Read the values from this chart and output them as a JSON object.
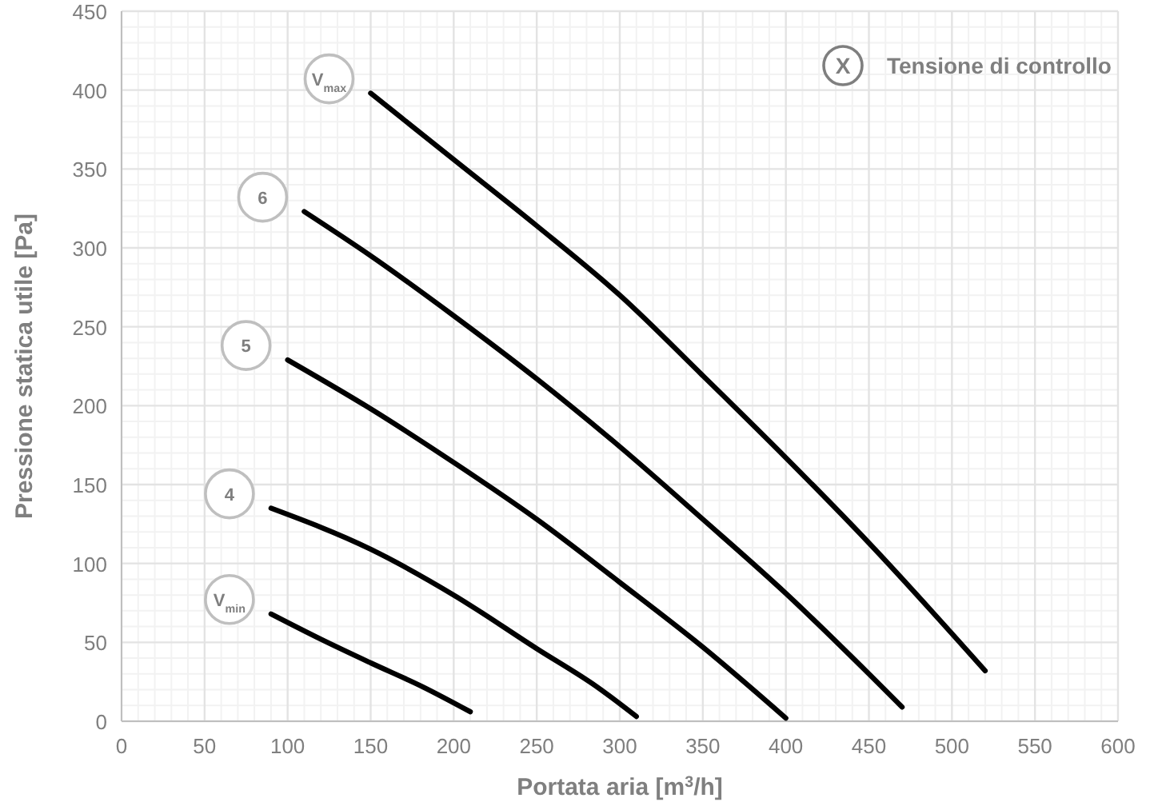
{
  "chart_data": {
    "type": "line",
    "xlabel": "Portata aria [m$^{3}$/h]",
    "ylabel": "Pressione statica utile [Pa]",
    "legend_title": "Tensione di controllo",
    "annotations": [
      "X"
    ],
    "xlim": [
      0,
      600
    ],
    "xticks": [
      0,
      50,
      100,
      150,
      200,
      250,
      300,
      350,
      400,
      450,
      500,
      550,
      600
    ],
    "ylim": [
      0,
      450
    ],
    "yticks": [
      0,
      50,
      100,
      150,
      200,
      250,
      300,
      350,
      400,
      450
    ],
    "grid": true,
    "line_style": "solid",
    "marker": "none",
    "series": [
      {
        "name": "V$_{max}$",
        "color": "#000000",
        "x": [
          150,
          200,
          250,
          300,
          350,
          400,
          450,
          520
        ],
        "values": [
          398,
          356,
          314,
          270,
          219,
          167,
          113,
          32
        ]
      },
      {
        "name": "6",
        "color": "#000000",
        "x": [
          110,
          150,
          200,
          250,
          300,
          350,
          400,
          450,
          470
        ],
        "values": [
          323,
          295,
          257,
          217,
          174,
          128,
          81,
          30,
          9
        ]
      },
      {
        "name": "5",
        "color": "#000000",
        "x": [
          100,
          150,
          200,
          250,
          300,
          350,
          400
        ],
        "values": [
          229,
          198,
          164,
          128,
          88,
          47,
          2
        ]
      },
      {
        "name": "4",
        "color": "#000000",
        "x": [
          90,
          150,
          200,
          250,
          286,
          310
        ],
        "values": [
          135,
          109,
          80,
          46,
          22,
          3
        ]
      },
      {
        "name": "V$_{min}$",
        "color": "#000000",
        "x": [
          90,
          120,
          150,
          181,
          210
        ],
        "values": [
          68,
          52,
          37,
          22,
          6
        ]
      }
    ]
  }
}
